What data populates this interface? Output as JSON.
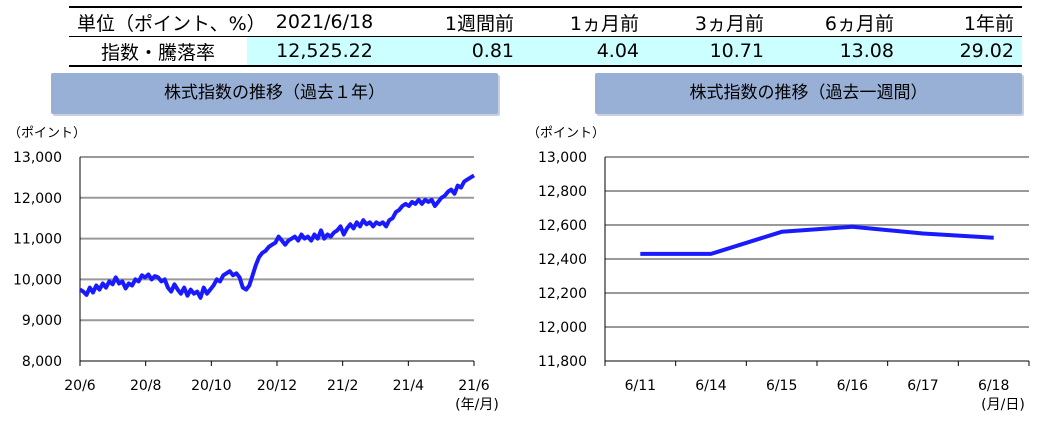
{
  "table": {
    "headers": [
      "単位（ポイント、%）",
      "2021/6/18",
      "1週間前",
      "1ヵ月前",
      "3ヵ月前",
      "6ヵ月前",
      "1年前"
    ],
    "row_label": "指数・騰落率",
    "values": [
      "12,525.22",
      "0.81",
      "4.04",
      "10.71",
      "13.08",
      "29.02"
    ]
  },
  "colors": {
    "line": "#1a1aff",
    "header_bg": "#99b0d6",
    "value_bg": "#ccffff",
    "grid": "#999999"
  },
  "chart_data": [
    {
      "type": "line",
      "title": "株式指数の推移（過去１年）",
      "ylabel": "（ポイント）",
      "xlabel": "(年/月)",
      "ylim": [
        8000,
        13000
      ],
      "yticks": [
        8000,
        9000,
        10000,
        11000,
        12000,
        13000
      ],
      "ytick_labels": [
        "8,000",
        "9,000",
        "10,000",
        "11,000",
        "12,000",
        "13,000"
      ],
      "xtick_labels": [
        "20/6",
        "20/8",
        "20/10",
        "20/12",
        "21/2",
        "21/4",
        "21/6"
      ],
      "series": [
        {
          "values": [
            9750,
            9700,
            9620,
            9800,
            9680,
            9850,
            9750,
            9900,
            9800,
            9950,
            9880,
            10050,
            9900,
            9950,
            9780,
            9900,
            9850,
            10000,
            9950,
            10100,
            10050,
            10120,
            10000,
            10080,
            10050,
            9950,
            10000,
            9800,
            9700,
            9880,
            9750,
            9650,
            9800,
            9600,
            9750,
            9650,
            9700,
            9550,
            9800,
            9650,
            9750,
            9850,
            10000,
            9950,
            10100,
            10150,
            10200,
            10100,
            10150,
            10050,
            9800,
            9750,
            9850,
            10100,
            10350,
            10550,
            10650,
            10700,
            10800,
            10850,
            10900,
            11050,
            10950,
            10850,
            10950,
            11000,
            11050,
            10950,
            11100,
            11000,
            11050,
            10950,
            11100,
            11000,
            11200,
            11000,
            11100,
            11050,
            11150,
            11200,
            11300,
            11100,
            11250,
            11350,
            11250,
            11400,
            11300,
            11450,
            11350,
            11400,
            11300,
            11400,
            11350,
            11400,
            11300,
            11450,
            11500,
            11650,
            11700,
            11800,
            11850,
            11800,
            11900,
            11850,
            11950,
            11850,
            11950,
            11900,
            11950,
            11800,
            11900,
            12000,
            12050,
            12150,
            12200,
            12100,
            12300,
            12250,
            12400,
            12450,
            12500,
            12550
          ]
        }
      ]
    },
    {
      "type": "line",
      "title": "株式指数の推移（過去一週間）",
      "ylabel": "（ポイント）",
      "xlabel": "(月/日)",
      "ylim": [
        11800,
        13000
      ],
      "yticks": [
        11800,
        12000,
        12200,
        12400,
        12600,
        12800,
        13000
      ],
      "ytick_labels": [
        "11,800",
        "12,000",
        "12,200",
        "12,400",
        "12,600",
        "12,800",
        "13,000"
      ],
      "categories": [
        "6/11",
        "6/14",
        "6/15",
        "6/16",
        "6/17",
        "6/18"
      ],
      "series": [
        {
          "values": [
            12430,
            12430,
            12560,
            12590,
            12550,
            12525
          ]
        }
      ]
    }
  ]
}
